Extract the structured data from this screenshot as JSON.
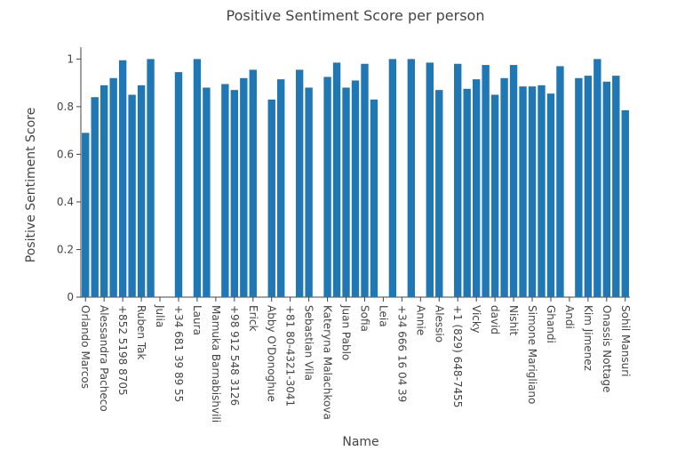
{
  "chart_data": {
    "type": "bar",
    "title": "Positive Sentiment Score per person",
    "x_label": "Name",
    "y_label": "Positive Sentiment Score",
    "categories": [
      "Orlando Marcos",
      null,
      "Alessandra Pacheco",
      null,
      "+852 5198 8705",
      null,
      "Ruben Tak",
      null,
      "Julia",
      null,
      "+34 681 39 89 55",
      null,
      "Laura",
      null,
      "Mamuka Barnabishvili",
      null,
      "+98 912 548 3126",
      null,
      "Erick",
      null,
      "Abby O'Donoghue",
      null,
      "+81 80-4321-3041",
      null,
      "Sebastian Vila",
      null,
      "Kateryna Malachkova",
      null,
      "Juan Pablo",
      null,
      "Sofia",
      null,
      "Leia",
      null,
      "+34 666 16 04 39",
      null,
      "Annie",
      null,
      "Alessio",
      null,
      "+1 (829) 648-7455",
      null,
      "Vicky",
      null,
      "david",
      null,
      "Nishit",
      null,
      "Simone Marigliano",
      null,
      "Ghandi",
      null,
      "Andi",
      null,
      "Kim Jimenez",
      null,
      "Onassis Nottage",
      null,
      "Sohil Mansuri"
    ],
    "values": [
      0.69,
      0.84,
      0.89,
      0.92,
      0.995,
      0.85,
      0.89,
      1.0,
      null,
      null,
      0.945,
      null,
      1.0,
      0.88,
      null,
      0.895,
      0.87,
      0.92,
      0.955,
      null,
      0.83,
      0.915,
      null,
      0.955,
      0.88,
      null,
      0.925,
      0.985,
      0.88,
      0.91,
      0.98,
      0.83,
      null,
      1.0,
      null,
      1.0,
      null,
      0.985,
      0.87,
      null,
      0.98,
      0.875,
      0.915,
      0.975,
      0.85,
      0.92,
      0.975,
      0.885,
      0.885,
      0.89,
      0.855,
      0.97,
      null,
      0.92,
      0.93,
      1.0,
      0.905,
      0.93,
      0.785
    ],
    "color": "#1f77b4",
    "ylim": [
      0,
      1.05
    ],
    "yticks": [
      0,
      0.2,
      0.4,
      0.6,
      0.8,
      1
    ],
    "grid": false
  }
}
